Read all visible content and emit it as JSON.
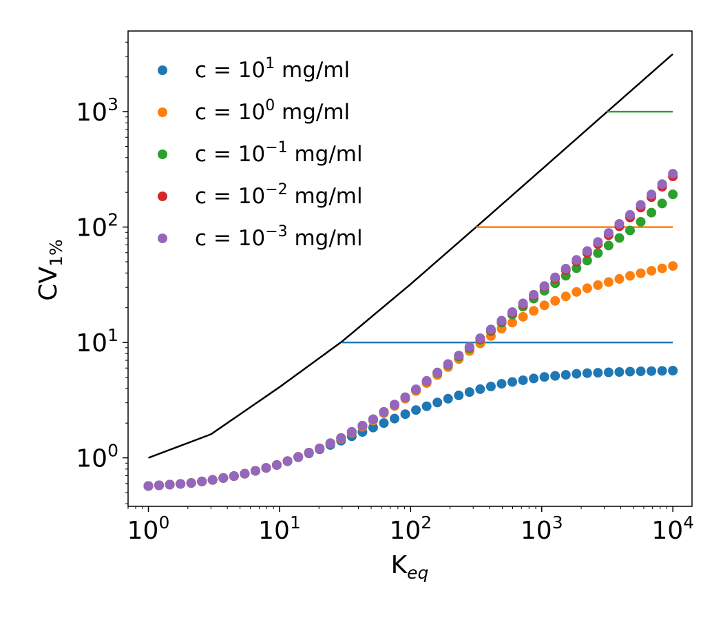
{
  "chart_data": {
    "type": "scatter",
    "xlabel": "K",
    "xlabel_sub": "eq",
    "ylabel": "CV",
    "ylabel_sub": "1%",
    "xscale": "log",
    "yscale": "log",
    "xlim": [
      0.7,
      14000
    ],
    "ylim": [
      0.38,
      5000
    ],
    "x_ticks": [
      {
        "value": 1,
        "exp": "0"
      },
      {
        "value": 10,
        "exp": "1"
      },
      {
        "value": 100,
        "exp": "2"
      },
      {
        "value": 1000,
        "exp": "3"
      },
      {
        "value": 10000,
        "exp": "4"
      }
    ],
    "y_ticks": [
      {
        "value": 1,
        "exp": "0"
      },
      {
        "value": 10,
        "exp": "1"
      },
      {
        "value": 100,
        "exp": "2"
      },
      {
        "value": 1000,
        "exp": "3"
      }
    ],
    "tick_base": "10",
    "legend_position": "upper-left",
    "grid": false,
    "reference_line": {
      "color": "#000000",
      "points": [
        [
          1,
          1.0
        ],
        [
          3,
          1.6
        ],
        [
          10,
          4.1
        ],
        [
          30,
          10.2
        ],
        [
          100,
          32
        ],
        [
          316,
          100
        ],
        [
          1000,
          316
        ],
        [
          3160,
          1000
        ],
        [
          10000,
          3160
        ]
      ]
    },
    "series": [
      {
        "name": "c = 10",
        "name_exp": "1",
        "name_unit": " mg/ml",
        "color": "#1f77b4",
        "threshold": {
          "y": 10,
          "x_start": 30,
          "x_end": 10000
        },
        "anchors": [
          [
            1,
            0.57
          ],
          [
            2,
            0.6
          ],
          [
            3,
            0.64
          ],
          [
            5,
            0.71
          ],
          [
            10,
            0.88
          ],
          [
            20,
            1.18
          ],
          [
            30,
            1.42
          ],
          [
            50,
            1.8
          ],
          [
            100,
            2.5
          ],
          [
            200,
            3.3
          ],
          [
            300,
            3.8
          ],
          [
            500,
            4.4
          ],
          [
            1000,
            5.0
          ],
          [
            2000,
            5.4
          ],
          [
            5000,
            5.6
          ],
          [
            10000,
            5.7
          ]
        ]
      },
      {
        "name": "c = 10",
        "name_exp": "0",
        "name_unit": " mg/ml",
        "color": "#ff7f0e",
        "threshold": {
          "y": 100,
          "x_start": 316,
          "x_end": 10000
        },
        "anchors": [
          [
            1,
            0.57
          ],
          [
            2,
            0.6
          ],
          [
            3,
            0.64
          ],
          [
            5,
            0.71
          ],
          [
            10,
            0.88
          ],
          [
            20,
            1.2
          ],
          [
            30,
            1.48
          ],
          [
            50,
            2.05
          ],
          [
            100,
            3.5
          ],
          [
            200,
            6.3
          ],
          [
            300,
            8.9
          ],
          [
            500,
            13.3
          ],
          [
            1000,
            20.5
          ],
          [
            2000,
            28.5
          ],
          [
            5000,
            38.5
          ],
          [
            10000,
            46
          ]
        ]
      },
      {
        "name": "c = 10",
        "name_exp": "−1",
        "name_unit": " mg/ml",
        "color": "#2ca02c",
        "threshold": {
          "y": 1000,
          "x_start": 3160,
          "x_end": 10000
        },
        "anchors": [
          [
            1,
            0.57
          ],
          [
            2,
            0.6
          ],
          [
            3,
            0.64
          ],
          [
            5,
            0.71
          ],
          [
            10,
            0.88
          ],
          [
            20,
            1.2
          ],
          [
            30,
            1.5
          ],
          [
            50,
            2.1
          ],
          [
            100,
            3.6
          ],
          [
            200,
            6.6
          ],
          [
            300,
            9.4
          ],
          [
            500,
            15
          ],
          [
            1000,
            27
          ],
          [
            2000,
            47
          ],
          [
            5000,
            98
          ],
          [
            10000,
            192
          ]
        ]
      },
      {
        "name": "c = 10",
        "name_exp": "−2",
        "name_unit": " mg/ml",
        "color": "#d62728",
        "anchors": [
          [
            1,
            0.57
          ],
          [
            2,
            0.6
          ],
          [
            3,
            0.64
          ],
          [
            5,
            0.71
          ],
          [
            10,
            0.88
          ],
          [
            20,
            1.2
          ],
          [
            30,
            1.5
          ],
          [
            50,
            2.1
          ],
          [
            100,
            3.6
          ],
          [
            200,
            6.7
          ],
          [
            300,
            9.6
          ],
          [
            500,
            15.4
          ],
          [
            1000,
            29
          ],
          [
            2000,
            54
          ],
          [
            5000,
            128
          ],
          [
            10000,
            275
          ]
        ]
      },
      {
        "name": "c = 10",
        "name_exp": "−3",
        "name_unit": " mg/ml",
        "color": "#9467bd",
        "anchors": [
          [
            1,
            0.57
          ],
          [
            2,
            0.6
          ],
          [
            3,
            0.64
          ],
          [
            5,
            0.71
          ],
          [
            10,
            0.88
          ],
          [
            20,
            1.2
          ],
          [
            30,
            1.5
          ],
          [
            50,
            2.1
          ],
          [
            100,
            3.6
          ],
          [
            200,
            6.7
          ],
          [
            300,
            9.7
          ],
          [
            500,
            15.6
          ],
          [
            1000,
            29.5
          ],
          [
            2000,
            56
          ],
          [
            5000,
            135
          ],
          [
            10000,
            290
          ]
        ]
      }
    ]
  }
}
